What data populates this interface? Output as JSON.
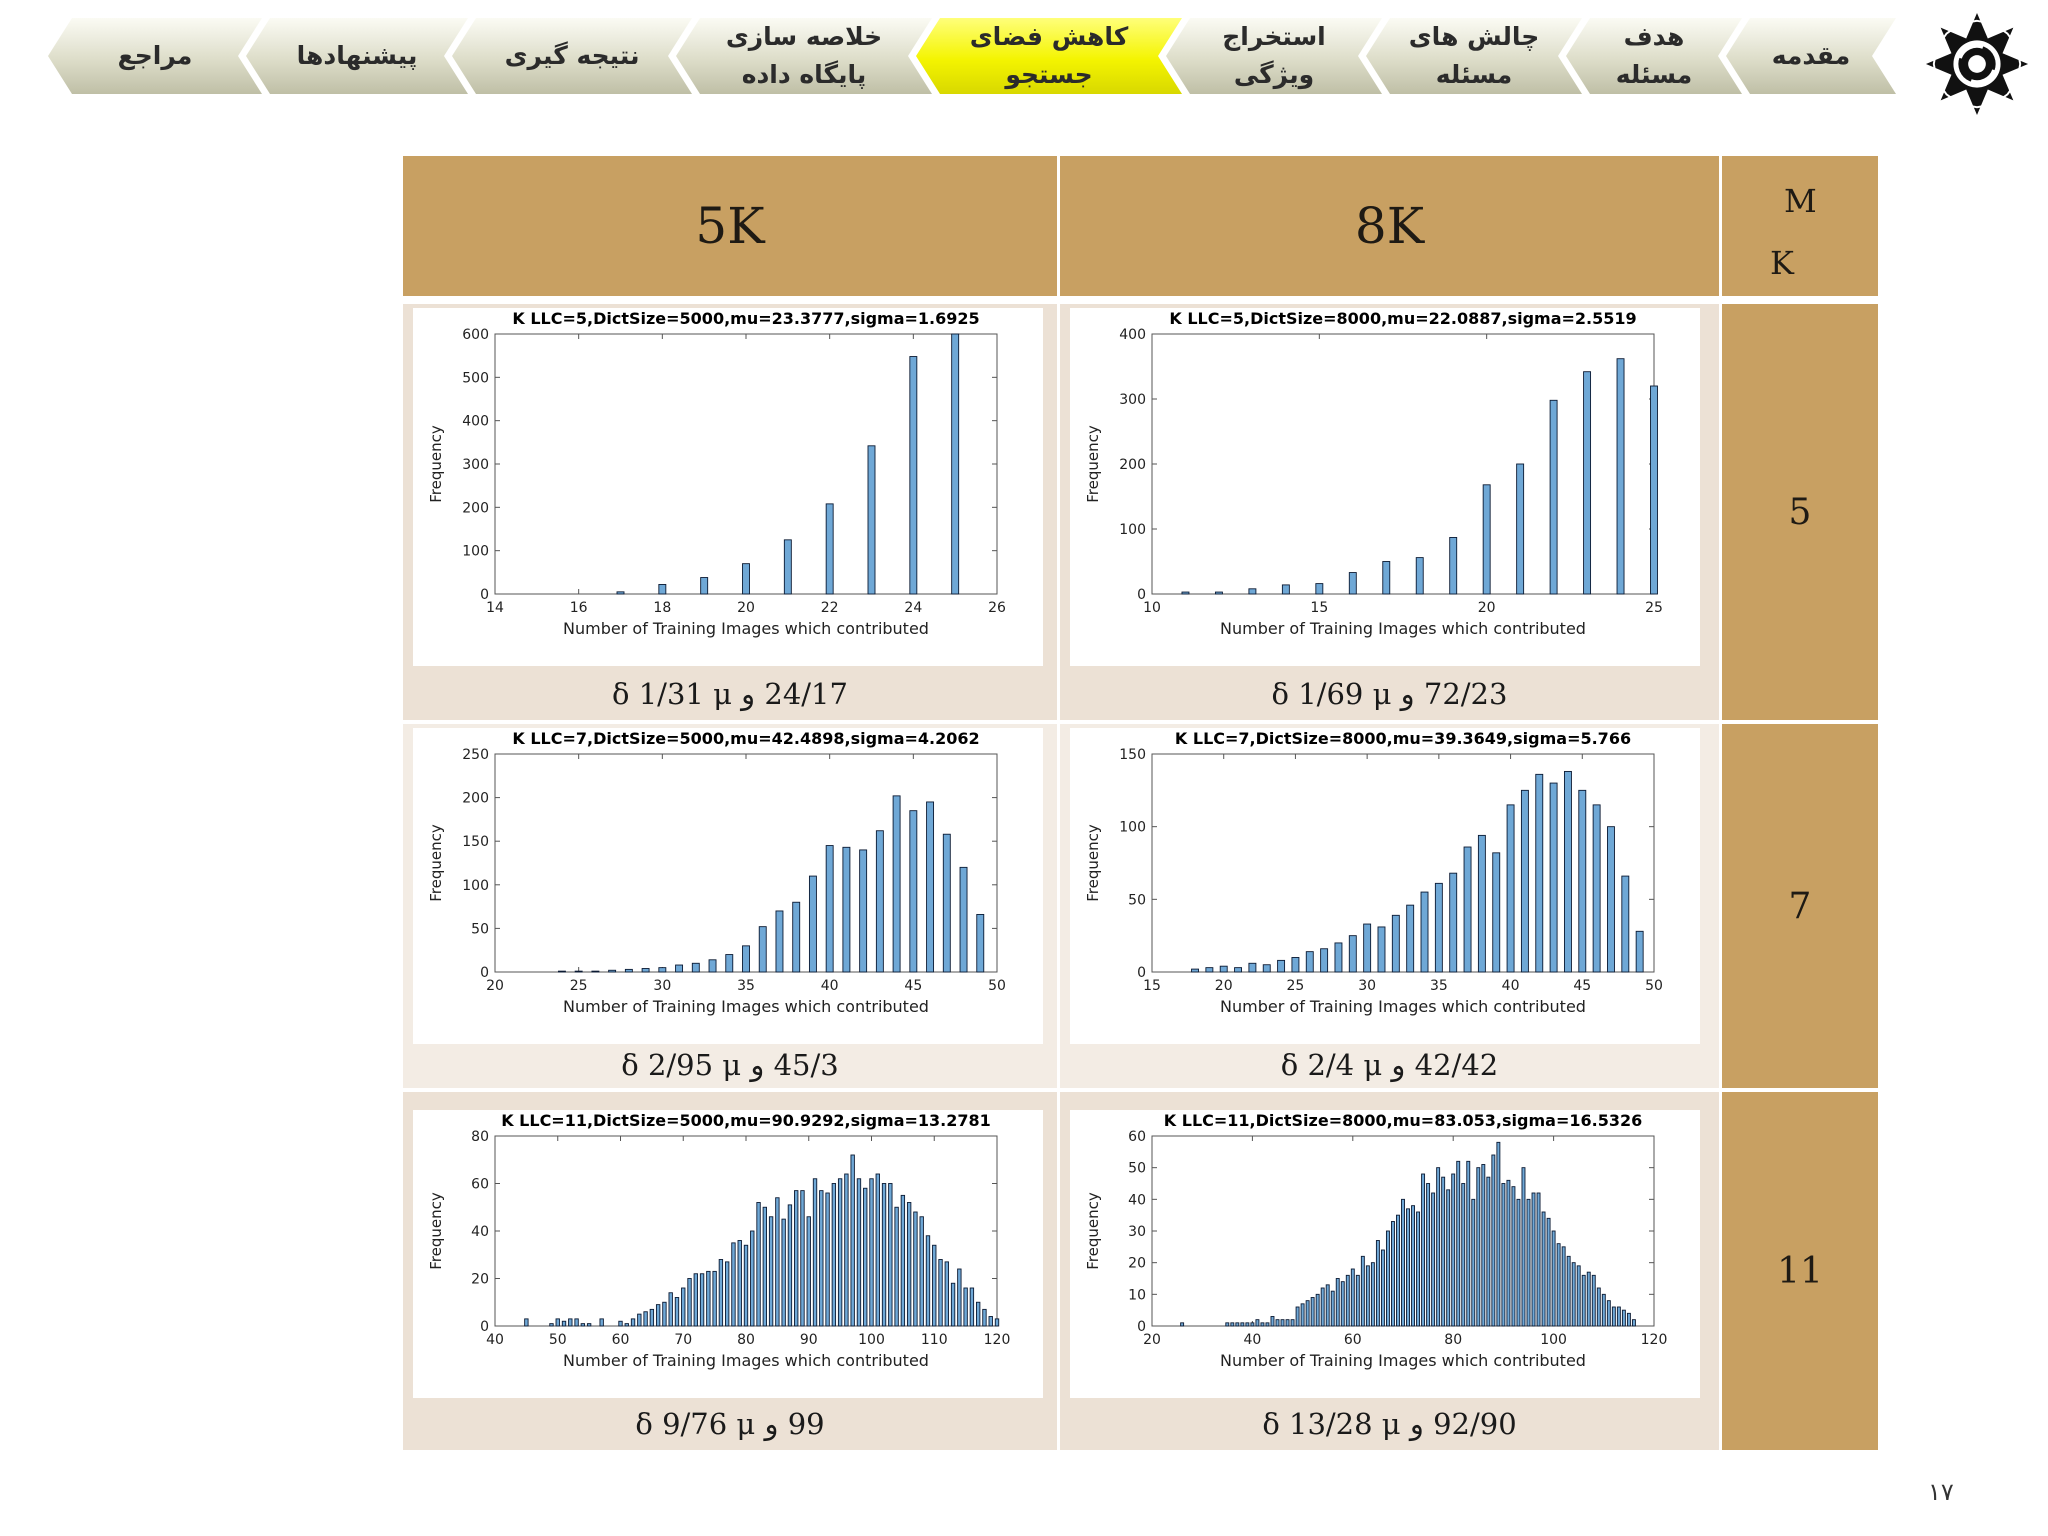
{
  "nav": {
    "tabs": [
      {
        "label": "مقدمه",
        "active": false
      },
      {
        "label": "هدف مسئله",
        "active": false
      },
      {
        "label": "چالش های مسئله",
        "active": false
      },
      {
        "label": "استخراج ویژگی",
        "active": false
      },
      {
        "label": "کاهش فضای جستجو",
        "active": true
      },
      {
        "label": "خلاصه سازی پایگاه داده",
        "active": false
      },
      {
        "label": "نتیجه گیری",
        "active": false
      },
      {
        "label": "پیشنهادها",
        "active": false
      },
      {
        "label": "مراجع",
        "active": false
      }
    ],
    "logo_icon": "star-seal-icon"
  },
  "table": {
    "corner_top": "M",
    "corner_bottom": "K",
    "col_headers": [
      "8K",
      "5K"
    ],
    "row_k": [
      "5",
      "7",
      "11"
    ],
    "captions": [
      [
        "72/23 و δ 1/69 μ",
        "24/17 و δ 1/31 μ"
      ],
      [
        "42/42 و δ 2/4 μ",
        "45/3 و δ 2/95 μ"
      ],
      [
        "92/90 و δ 13/28 μ",
        "99 و δ 9/76 μ"
      ]
    ]
  },
  "page_number": "۱۷",
  "colors": {
    "bar_fill": "#6fa8d6",
    "bar_edge": "#0b1a33",
    "header": "#c8a062",
    "cell": "#ece1d5"
  },
  "chart_data": [
    {
      "type": "bar",
      "title": "K LLC=5,DictSize=5000,mu=23.3777,sigma=1.6925",
      "xlabel": "Number of Training Images which contributed",
      "ylabel": "Frequency",
      "xlim": [
        14,
        26
      ],
      "ylim": [
        0,
        600
      ],
      "xticks": [
        14,
        16,
        18,
        20,
        22,
        24,
        26
      ],
      "yticks": [
        0,
        100,
        200,
        300,
        400,
        500,
        600
      ],
      "x": [
        17,
        18,
        19,
        20,
        21,
        22,
        23,
        24,
        25
      ],
      "values": [
        5,
        22,
        38,
        70,
        125,
        208,
        342,
        548,
        600
      ]
    },
    {
      "type": "bar",
      "title": "K LLC=5,DictSize=8000,mu=22.0887,sigma=2.5519",
      "xlabel": "Number of Training Images which contributed",
      "ylabel": "Frequency",
      "xlim": [
        10,
        25
      ],
      "ylim": [
        0,
        400
      ],
      "xticks": [
        10,
        15,
        20,
        25
      ],
      "yticks": [
        0,
        100,
        200,
        300,
        400
      ],
      "x": [
        11,
        12,
        13,
        14,
        15,
        16,
        17,
        18,
        19,
        20,
        21,
        22,
        23,
        24,
        25
      ],
      "values": [
        3,
        3,
        8,
        14,
        16,
        33,
        50,
        56,
        87,
        168,
        200,
        298,
        342,
        362,
        320
      ]
    },
    {
      "type": "bar",
      "title": "K LLC=7,DictSize=5000,mu=42.4898,sigma=4.2062",
      "xlabel": "Number of Training Images which contributed",
      "ylabel": "Frequency",
      "xlim": [
        20,
        50
      ],
      "ylim": [
        0,
        250
      ],
      "xticks": [
        20,
        25,
        30,
        35,
        40,
        45,
        50
      ],
      "yticks": [
        0,
        50,
        100,
        150,
        200,
        250
      ],
      "x": [
        24,
        25,
        26,
        27,
        28,
        29,
        30,
        31,
        32,
        33,
        34,
        35,
        36,
        37,
        38,
        39,
        40,
        41,
        42,
        43,
        44,
        45,
        46,
        47,
        48,
        49
      ],
      "values": [
        1,
        1,
        1,
        2,
        3,
        4,
        5,
        8,
        10,
        14,
        20,
        30,
        52,
        70,
        80,
        110,
        145,
        143,
        140,
        162,
        202,
        185,
        195,
        158,
        120,
        66
      ]
    },
    {
      "type": "bar",
      "title": "K LLC=7,DictSize=8000,mu=39.3649,sigma=5.766",
      "xlabel": "Number of Training Images which contributed",
      "ylabel": "Frequency",
      "xlim": [
        15,
        50
      ],
      "ylim": [
        0,
        150
      ],
      "xticks": [
        15,
        20,
        25,
        30,
        35,
        40,
        45,
        50
      ],
      "yticks": [
        0,
        50,
        100,
        150
      ],
      "x": [
        18,
        19,
        20,
        21,
        22,
        23,
        24,
        25,
        26,
        27,
        28,
        29,
        30,
        31,
        32,
        33,
        34,
        35,
        36,
        37,
        38,
        39,
        40,
        41,
        42,
        43,
        44,
        45,
        46,
        47,
        48,
        49
      ],
      "values": [
        2,
        3,
        4,
        3,
        6,
        5,
        8,
        10,
        14,
        16,
        20,
        25,
        33,
        31,
        39,
        46,
        55,
        61,
        68,
        86,
        94,
        82,
        115,
        125,
        136,
        130,
        138,
        125,
        115,
        100,
        66,
        28
      ]
    },
    {
      "type": "bar",
      "title": "K LLC=11,DictSize=5000,mu=90.9292,sigma=13.2781",
      "xlabel": "Number of Training Images which contributed",
      "ylabel": "Frequency",
      "xlim": [
        40,
        120
      ],
      "ylim": [
        0,
        80
      ],
      "xticks": [
        40,
        50,
        60,
        70,
        80,
        90,
        100,
        110,
        120
      ],
      "yticks": [
        0,
        20,
        40,
        60,
        80
      ],
      "x": [
        45,
        46,
        47,
        48,
        49,
        50,
        51,
        52,
        53,
        54,
        55,
        56,
        57,
        58,
        59,
        60,
        61,
        62,
        63,
        64,
        65,
        66,
        67,
        68,
        69,
        70,
        71,
        72,
        73,
        74,
        75,
        76,
        77,
        78,
        79,
        80,
        81,
        82,
        83,
        84,
        85,
        86,
        87,
        88,
        89,
        90,
        91,
        92,
        93,
        94,
        95,
        96,
        97,
        98,
        99,
        100,
        101,
        102,
        103,
        104,
        105,
        106,
        107,
        108,
        109,
        110,
        111,
        112,
        113,
        114,
        115,
        116,
        117,
        118,
        119,
        120
      ],
      "values": [
        3,
        0,
        0,
        0,
        1,
        3,
        2,
        3,
        3,
        1,
        1,
        0,
        3,
        0,
        0,
        2,
        1,
        3,
        5,
        6,
        7,
        9,
        10,
        14,
        12,
        16,
        20,
        22,
        22,
        23,
        23,
        28,
        27,
        35,
        36,
        34,
        40,
        52,
        50,
        46,
        54,
        45,
        51,
        57,
        57,
        46,
        62,
        57,
        56,
        60,
        62,
        64,
        72,
        62,
        58,
        62,
        64,
        60,
        60,
        50,
        55,
        52,
        48,
        46,
        38,
        34,
        28,
        27,
        18,
        24,
        16,
        16,
        10,
        7,
        4,
        3
      ]
    },
    {
      "type": "bar",
      "title": "K LLC=11,DictSize=8000,mu=83.053,sigma=16.5326",
      "xlabel": "Number of Training Images which contributed",
      "ylabel": "Frequency",
      "xlim": [
        20,
        120
      ],
      "ylim": [
        0,
        60
      ],
      "xticks": [
        20,
        40,
        60,
        80,
        100,
        120
      ],
      "yticks": [
        0,
        10,
        20,
        30,
        40,
        50,
        60
      ],
      "x": [
        26,
        27,
        28,
        29,
        30,
        31,
        32,
        33,
        34,
        35,
        36,
        37,
        38,
        39,
        40,
        41,
        42,
        43,
        44,
        45,
        46,
        47,
        48,
        49,
        50,
        51,
        52,
        53,
        54,
        55,
        56,
        57,
        58,
        59,
        60,
        61,
        62,
        63,
        64,
        65,
        66,
        67,
        68,
        69,
        70,
        71,
        72,
        73,
        74,
        75,
        76,
        77,
        78,
        79,
        80,
        81,
        82,
        83,
        84,
        85,
        86,
        87,
        88,
        89,
        90,
        91,
        92,
        93,
        94,
        95,
        96,
        97,
        98,
        99,
        100,
        101,
        102,
        103,
        104,
        105,
        106,
        107,
        108,
        109,
        110,
        111,
        112,
        113,
        114,
        115,
        116
      ],
      "values": [
        1,
        0,
        0,
        0,
        0,
        0,
        0,
        0,
        0,
        1,
        1,
        1,
        1,
        1,
        1,
        2,
        1,
        1,
        3,
        2,
        2,
        2,
        2,
        6,
        7,
        8,
        9,
        10,
        12,
        13,
        11,
        15,
        14,
        16,
        18,
        16,
        22,
        19,
        20,
        27,
        24,
        30,
        33,
        35,
        40,
        37,
        38,
        36,
        48,
        45,
        42,
        50,
        47,
        43,
        48,
        52,
        45,
        52,
        40,
        50,
        51,
        47,
        54,
        58,
        45,
        46,
        44,
        40,
        50,
        40,
        42,
        42,
        36,
        34,
        30,
        26,
        25,
        22,
        20,
        19,
        16,
        17,
        16,
        12,
        10,
        8,
        6,
        6,
        5,
        4,
        2
      ]
    }
  ]
}
